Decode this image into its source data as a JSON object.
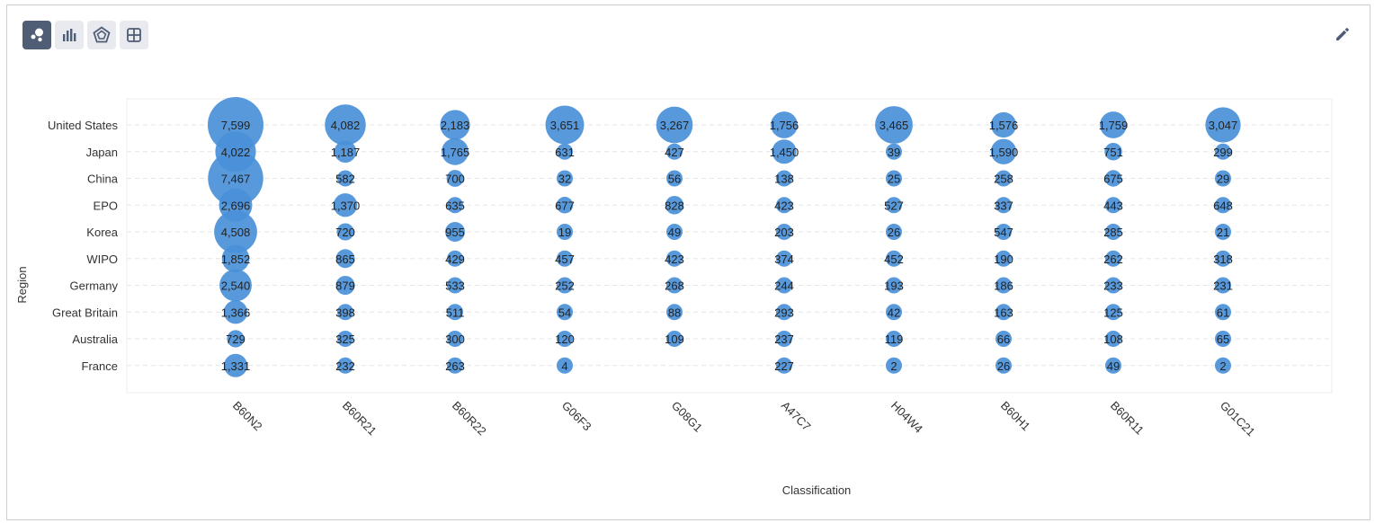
{
  "toolbar": {
    "buttons": [
      {
        "name": "bubble-chart-button",
        "icon": "bubble-chart-icon",
        "active": true
      },
      {
        "name": "bar-chart-button",
        "icon": "bar-chart-icon",
        "active": false
      },
      {
        "name": "radar-chart-button",
        "icon": "radar-chart-icon",
        "active": false
      },
      {
        "name": "table-view-button",
        "icon": "table-grid-icon",
        "active": false
      }
    ],
    "edit_icon": "pencil-icon"
  },
  "colors": {
    "bubble": "#4a90d9",
    "active_button": "#4f5d75",
    "button": "#e8eaef"
  },
  "chart_data": {
    "type": "scatter",
    "subtype": "bubble",
    "xlabel": "Classification",
    "ylabel": "Region",
    "x_categories": [
      "B60N2",
      "B60R21",
      "B60R22",
      "G06F3",
      "G08G1",
      "A47C7",
      "H04W4",
      "B60H1",
      "B60R11",
      "G01C21"
    ],
    "y_categories": [
      "United States",
      "Japan",
      "China",
      "EPO",
      "Korea",
      "WIPO",
      "Germany",
      "Great Britain",
      "Australia",
      "France"
    ],
    "values": [
      [
        7599,
        4082,
        2183,
        3651,
        3267,
        1756,
        3465,
        1576,
        1759,
        3047
      ],
      [
        4022,
        1187,
        1765,
        631,
        427,
        1450,
        39,
        1590,
        751,
        299
      ],
      [
        7467,
        582,
        700,
        32,
        56,
        138,
        25,
        258,
        675,
        29
      ],
      [
        2696,
        1370,
        635,
        677,
        828,
        423,
        527,
        337,
        443,
        648
      ],
      [
        4508,
        720,
        955,
        19,
        49,
        203,
        26,
        547,
        285,
        21
      ],
      [
        1852,
        865,
        429,
        457,
        423,
        374,
        452,
        190,
        262,
        318
      ],
      [
        2540,
        879,
        533,
        252,
        268,
        244,
        193,
        186,
        233,
        231
      ],
      [
        1366,
        398,
        511,
        54,
        88,
        293,
        42,
        163,
        125,
        61
      ],
      [
        729,
        325,
        300,
        120,
        109,
        237,
        119,
        66,
        108,
        65
      ],
      [
        1331,
        232,
        263,
        4,
        0,
        227,
        2,
        26,
        49,
        2
      ]
    ],
    "grid": true,
    "legend": "none"
  }
}
